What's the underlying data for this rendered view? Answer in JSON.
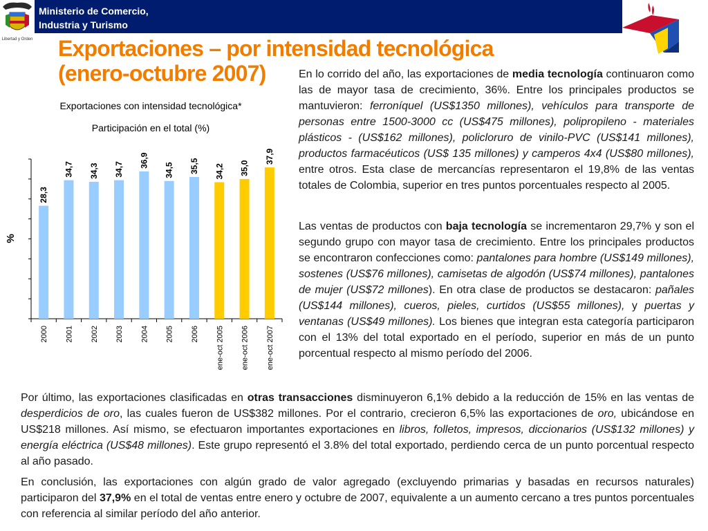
{
  "header": {
    "ministry_line1": "Ministerio de Comercio,",
    "ministry_line2": "Industria y Turismo",
    "emblem_motto": "Libertad y Orden",
    "bar_color": "#001c6e"
  },
  "title": {
    "line1": "Exportaciones – por intensidad tecnológica",
    "line2": "(enero-octubre 2007)"
  },
  "chart_data": {
    "type": "bar",
    "title": "Exportaciones con intensidad tecnológica*",
    "subtitle": "Participación en el total (%)",
    "ylabel": "%",
    "xlabel": "",
    "ylim": [
      0,
      40
    ],
    "categories": [
      "2000",
      "2001",
      "2002",
      "2003",
      "2004",
      "2005",
      "2006",
      "ene-oct 2005",
      "ene-oct 2006",
      "ene-oct 2007"
    ],
    "values": [
      28.3,
      34.7,
      34.3,
      34.7,
      36.9,
      34.5,
      35.5,
      34.2,
      35.0,
      37.9
    ],
    "value_labels": [
      "28,3",
      "34,7",
      "34,3",
      "34,7",
      "36,9",
      "34,5",
      "35,5",
      "34,2",
      "35,0",
      "37,9"
    ],
    "colors": [
      "#99ccff",
      "#99ccff",
      "#99ccff",
      "#99ccff",
      "#99ccff",
      "#99ccff",
      "#99ccff",
      "#ffcc00",
      "#ffcc00",
      "#ffcc00"
    ],
    "grid": false
  },
  "text": {
    "p1": [
      {
        "t": "En lo corrido del año, las exportaciones de ",
        "s": ""
      },
      {
        "t": "media tecnología",
        "s": "b"
      },
      {
        "t": " continuaron como las de mayor tasa de crecimiento, 36%. Entre los principales productos se mantuvieron: ",
        "s": ""
      },
      {
        "t": "ferroníquel (US$1350 millones), vehículos para transporte de personas entre 1500-3000 cc (US$475 millones), polipropileno - materiales plásticos - (US$162 millones), policloruro de vinilo-PVC (US$141 millones), productos farmacéuticos (US$ 135 millones) y camperos 4x4 (US$80 millones),",
        "s": "i"
      },
      {
        "t": " entre otros.  Esta clase de mercancías representaron el 19,8% de las ventas totales de Colombia, superior en tres puntos porcentuales respecto al 2005.",
        "s": ""
      }
    ],
    "p2": [
      {
        "t": "Las ventas de productos con ",
        "s": ""
      },
      {
        "t": "baja tecnología",
        "s": "b"
      },
      {
        "t": " se incrementaron 29,7% y son el segundo grupo con mayor tasa de crecimiento. Entre los principales productos se encontraron confecciones como: ",
        "s": ""
      },
      {
        "t": "pantalones para hombre (US$149 millones), sostenes (US$76 millones), camisetas de algodón (US$74 millones), pantalones de mujer (US$72 millones",
        "s": "i"
      },
      {
        "t": "). En otra clase de productos se destacaron: ",
        "s": ""
      },
      {
        "t": "pañales (US$144 millones), cueros, pieles, curtidos (US$55 millones),",
        "s": "i"
      },
      {
        "t": " y ",
        "s": ""
      },
      {
        "t": "puertas y ventanas (US$49 millones).",
        "s": "i"
      },
      {
        "t": " Los bienes que integran esta categoría participaron con el 13% del total exportado en el período, superior en más de un punto porcentual respecto al mismo período del 2006.",
        "s": ""
      }
    ],
    "p3": [
      {
        "t": "Por último, las exportaciones clasificadas en ",
        "s": ""
      },
      {
        "t": "otras transacciones",
        "s": "b"
      },
      {
        "t": " disminuyeron 6,1% debido a la reducción de 15% en las ventas de ",
        "s": ""
      },
      {
        "t": "desperdicios de oro",
        "s": "i"
      },
      {
        "t": ", las cuales fueron de US$382 millones. Por el contrario, crecieron 6,5% las exportaciones de ",
        "s": ""
      },
      {
        "t": "oro,",
        "s": "i"
      },
      {
        "t": " ubicándose en US$218 millones. Así mismo, se efectuaron importantes exportaciones en ",
        "s": ""
      },
      {
        "t": "libros, folletos, impresos, diccionarios (US$132 millones) y energía eléctrica (US$48 millones)",
        "s": "i"
      },
      {
        "t": ". Este grupo representó el 3.8% del total exportado, perdiendo cerca de un punto porcentual respecto al año pasado.",
        "s": ""
      }
    ],
    "p4": [
      {
        "t": "En conclusión, las exportaciones con algún grado de valor agregado (excluyendo primarias y basadas en recursos naturales) participaron del ",
        "s": ""
      },
      {
        "t": "37,9%",
        "s": "b"
      },
      {
        "t": " en el total de ventas entre enero y octubre de 2007, equivalente a un aumento cercano a tres puntos porcentuales con referencia al similar período del año anterior.",
        "s": ""
      }
    ]
  }
}
